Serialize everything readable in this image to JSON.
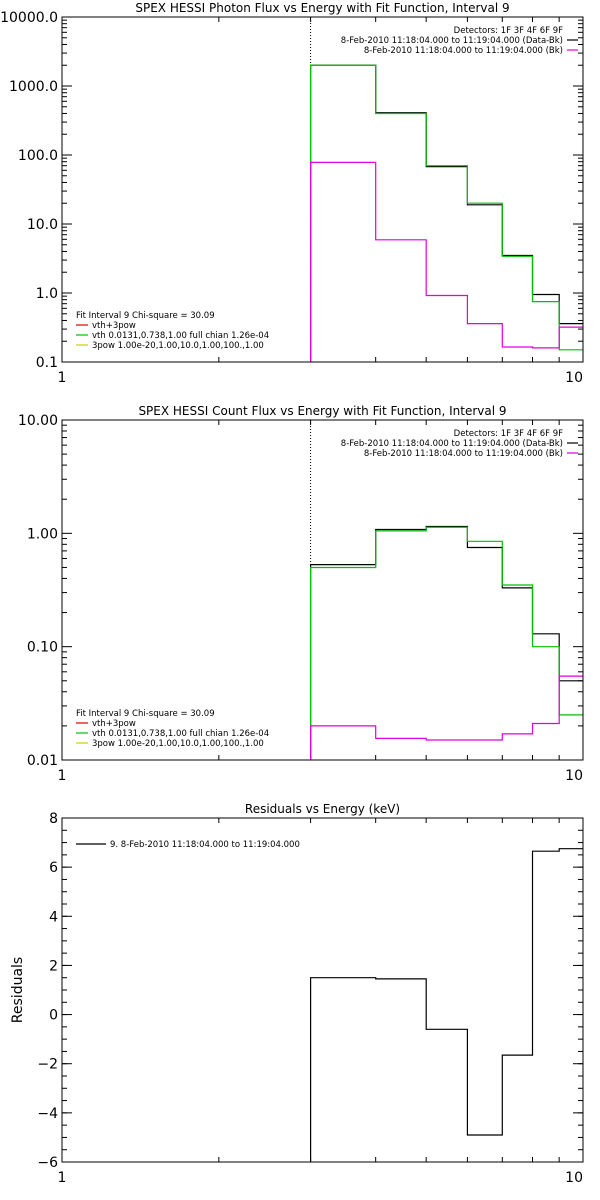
{
  "chart_data": [
    {
      "type": "line",
      "title": "SPEX HESSI Photon Flux vs Energy with Fit Function, Interval 9",
      "xlabel": "",
      "ylabel": "",
      "x_scale": "log",
      "y_scale": "log",
      "xlim": [
        1,
        10
      ],
      "ylim": [
        0.1,
        10000
      ],
      "x_ticks": [
        {
          "v": 1,
          "label": "1"
        },
        {
          "v": 10,
          "label": "10"
        }
      ],
      "y_ticks": [
        {
          "v": 10000,
          "label": "10000.0"
        },
        {
          "v": 1000,
          "label": "1000.0"
        },
        {
          "v": 100,
          "label": "100.0"
        },
        {
          "v": 10,
          "label": "10.0"
        },
        {
          "v": 1,
          "label": "1.0"
        },
        {
          "v": 0.1,
          "label": "0.1"
        }
      ],
      "vline_x": 3,
      "legend_right": [
        {
          "text": "Detectors: 1F 3F 4F 6F 9F",
          "color": null
        },
        {
          "text": "8-Feb-2010 11:18:04.000 to 11:19:04.000 (Data-Bk)",
          "color": "#000000"
        },
        {
          "text": "8-Feb-2010 11:18:04.000 to 11:19:04.000 (Bk)",
          "color": "#e000e0"
        }
      ],
      "legend_left": [
        {
          "text": "Fit Interval 9   Chi-square = 30.09",
          "color": null
        },
        {
          "text": "vth+3pow",
          "color": "#e00000"
        },
        {
          "text": "vth 0.0131,0.738,1.00  full chian 1.26e-04",
          "color": "#00c000"
        },
        {
          "text": "3pow 1.00e-20,1.00,10.0,1.00,100.,1.00",
          "color": "#d0d000"
        }
      ],
      "series": [
        {
          "color": "#000000",
          "edges": [
            3,
            4,
            5,
            6,
            7,
            8,
            9,
            10
          ],
          "values": [
            2000,
            410,
            68,
            19,
            3.5,
            0.95,
            0.36
          ]
        },
        {
          "color": "#00c000",
          "edges": [
            3,
            4,
            5,
            6,
            7,
            8,
            9,
            10
          ],
          "values": [
            2000,
            400,
            70,
            20,
            3.4,
            0.75,
            0.15
          ]
        },
        {
          "color": "#e000e0",
          "edges": [
            3,
            4,
            5,
            6,
            7,
            8,
            9,
            10
          ],
          "values": [
            78,
            5.9,
            0.92,
            0.36,
            0.165,
            0.16,
            0.32
          ]
        }
      ]
    },
    {
      "type": "line",
      "title": "SPEX HESSI Count Flux vs Energy with Fit Function, Interval 9",
      "xlabel": "",
      "ylabel": "",
      "x_scale": "log",
      "y_scale": "log",
      "xlim": [
        1,
        10
      ],
      "ylim": [
        0.01,
        10
      ],
      "x_ticks": [
        {
          "v": 1,
          "label": "1"
        },
        {
          "v": 10,
          "label": "10"
        }
      ],
      "y_ticks": [
        {
          "v": 10,
          "label": "10.00"
        },
        {
          "v": 1,
          "label": "1.00"
        },
        {
          "v": 0.1,
          "label": "0.10"
        },
        {
          "v": 0.01,
          "label": "0.01"
        }
      ],
      "vline_x": 3,
      "legend_right": [
        {
          "text": "Detectors: 1F 3F 4F 6F 9F",
          "color": null
        },
        {
          "text": "8-Feb-2010 11:18:04.000 to 11:19:04.000 (Data-Bk)",
          "color": "#000000"
        },
        {
          "text": "8-Feb-2010 11:18:04.000 to 11:19:04.000 (Bk)",
          "color": "#e000e0"
        }
      ],
      "legend_left": [
        {
          "text": "Fit Interval 9   Chi-square = 30.09",
          "color": null
        },
        {
          "text": "vth+3pow",
          "color": "#e00000"
        },
        {
          "text": "vth 0.0131,0.738,1.00  full chian 1.26e-04",
          "color": "#00c000"
        },
        {
          "text": "3pow 1.00e-20,1.00,10.0,1.00,100.,1.00",
          "color": "#d0d000"
        }
      ],
      "series": [
        {
          "color": "#000000",
          "edges": [
            3,
            4,
            5,
            6,
            7,
            8,
            9,
            10
          ],
          "values": [
            0.53,
            1.08,
            1.15,
            0.75,
            0.33,
            0.13,
            0.05
          ]
        },
        {
          "color": "#00c000",
          "edges": [
            3,
            4,
            5,
            6,
            7,
            8,
            9,
            10
          ],
          "values": [
            0.5,
            1.05,
            1.13,
            0.85,
            0.35,
            0.1,
            0.025
          ]
        },
        {
          "color": "#e000e0",
          "edges": [
            3,
            4,
            5,
            6,
            7,
            8,
            9,
            10
          ],
          "values": [
            0.02,
            0.0155,
            0.015,
            0.015,
            0.017,
            0.021,
            0.055
          ]
        }
      ]
    },
    {
      "type": "line",
      "title": "Residuals vs Energy (keV)",
      "xlabel": "",
      "ylabel": "Residuals",
      "x_scale": "log",
      "y_scale": "linear",
      "xlim": [
        1,
        10
      ],
      "ylim": [
        -6,
        8
      ],
      "x_ticks": [
        {
          "v": 1,
          "label": "1"
        },
        {
          "v": 10,
          "label": "10"
        }
      ],
      "y_ticks": [
        {
          "v": 8,
          "label": "8"
        },
        {
          "v": 6,
          "label": "6"
        },
        {
          "v": 4,
          "label": "4"
        },
        {
          "v": 2,
          "label": "2"
        },
        {
          "v": 0,
          "label": "0"
        },
        {
          "v": -2,
          "label": "−2"
        },
        {
          "v": -4,
          "label": "−4"
        },
        {
          "v": -6,
          "label": "−6"
        }
      ],
      "legend_left": [
        {
          "text": "9.  8-Feb-2010 11:18:04.000 to 11:19:04.000",
          "color": "#000000"
        }
      ],
      "series": [
        {
          "color": "#000000",
          "edges": [
            3,
            4,
            5,
            6,
            7,
            8,
            9,
            10
          ],
          "values": [
            1.5,
            1.45,
            -0.6,
            -4.9,
            -1.65,
            6.65,
            6.75
          ]
        }
      ]
    }
  ]
}
